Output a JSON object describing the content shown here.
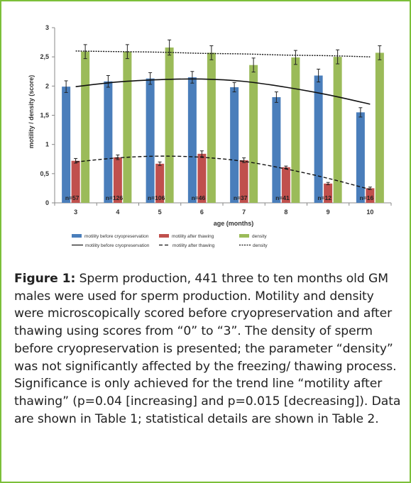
{
  "chart_data": {
    "type": "bar",
    "categories": [
      "3",
      "4",
      "5",
      "6",
      "7",
      "8",
      "9",
      "10"
    ],
    "xlabel": "age (months)",
    "ylabel": "motility / density (score)",
    "ylim": [
      0,
      3
    ],
    "yticks": [
      "0",
      "0,5",
      "1",
      "1,5",
      "2",
      "2,5",
      "3"
    ],
    "ytick_values": [
      0,
      0.5,
      1,
      1.5,
      2,
      2.5,
      3
    ],
    "grid": false,
    "legend_position": "bottom",
    "sample_sizes": [
      "n=57",
      "n=126",
      "n=106",
      "n=46",
      "n=37",
      "n=41",
      "n=12",
      "n=16"
    ],
    "series": [
      {
        "name": "motility before cryopreservation",
        "color": "#4a7ebb",
        "values": [
          1.99,
          2.08,
          2.13,
          2.15,
          1.98,
          1.81,
          2.18,
          1.55
        ],
        "errors": [
          0.1,
          0.1,
          0.1,
          0.1,
          0.08,
          0.09,
          0.11,
          0.08
        ]
      },
      {
        "name": "motility after thawing",
        "color": "#c0504d",
        "values": [
          0.72,
          0.78,
          0.67,
          0.84,
          0.73,
          0.61,
          0.33,
          0.25
        ],
        "errors": [
          0.04,
          0.04,
          0.03,
          0.05,
          0.04,
          0.02,
          0.02,
          0.02
        ]
      },
      {
        "name": "density",
        "color": "#9bbb59",
        "values": [
          2.59,
          2.59,
          2.66,
          2.57,
          2.36,
          2.49,
          2.5,
          2.57
        ],
        "errors": [
          0.12,
          0.12,
          0.13,
          0.12,
          0.12,
          0.12,
          0.12,
          0.12
        ]
      }
    ],
    "trendlines": [
      {
        "name": "motility before cryopreservation",
        "style": "solid",
        "values": [
          1.99,
          2.07,
          2.11,
          2.12,
          2.08,
          1.98,
          1.85,
          1.69
        ]
      },
      {
        "name": "motility after thawing",
        "style": "dashed",
        "values": [
          0.7,
          0.77,
          0.8,
          0.78,
          0.71,
          0.58,
          0.42,
          0.23
        ]
      },
      {
        "name": "density",
        "style": "dotted",
        "values": [
          2.6,
          2.59,
          2.58,
          2.56,
          2.55,
          2.53,
          2.52,
          2.5
        ]
      }
    ]
  },
  "caption": {
    "label": "Figure 1:",
    "text": " Sperm production, 441 three to ten months old GM males were used for sperm production. Motility and density were microscopically scored before cryopreservation and after thawing using scores from “0” to “3”. The density of sperm before cryopreservation is presented; the parameter “density” was not significantly affected by the freezing/ thawing process. Significance is only achieved for the trend line “motility after thawing” (p=0.04 [increasing] and p=0.015 [decreasing]). Data are shown in Table 1; statistical details are shown in Table 2."
  }
}
